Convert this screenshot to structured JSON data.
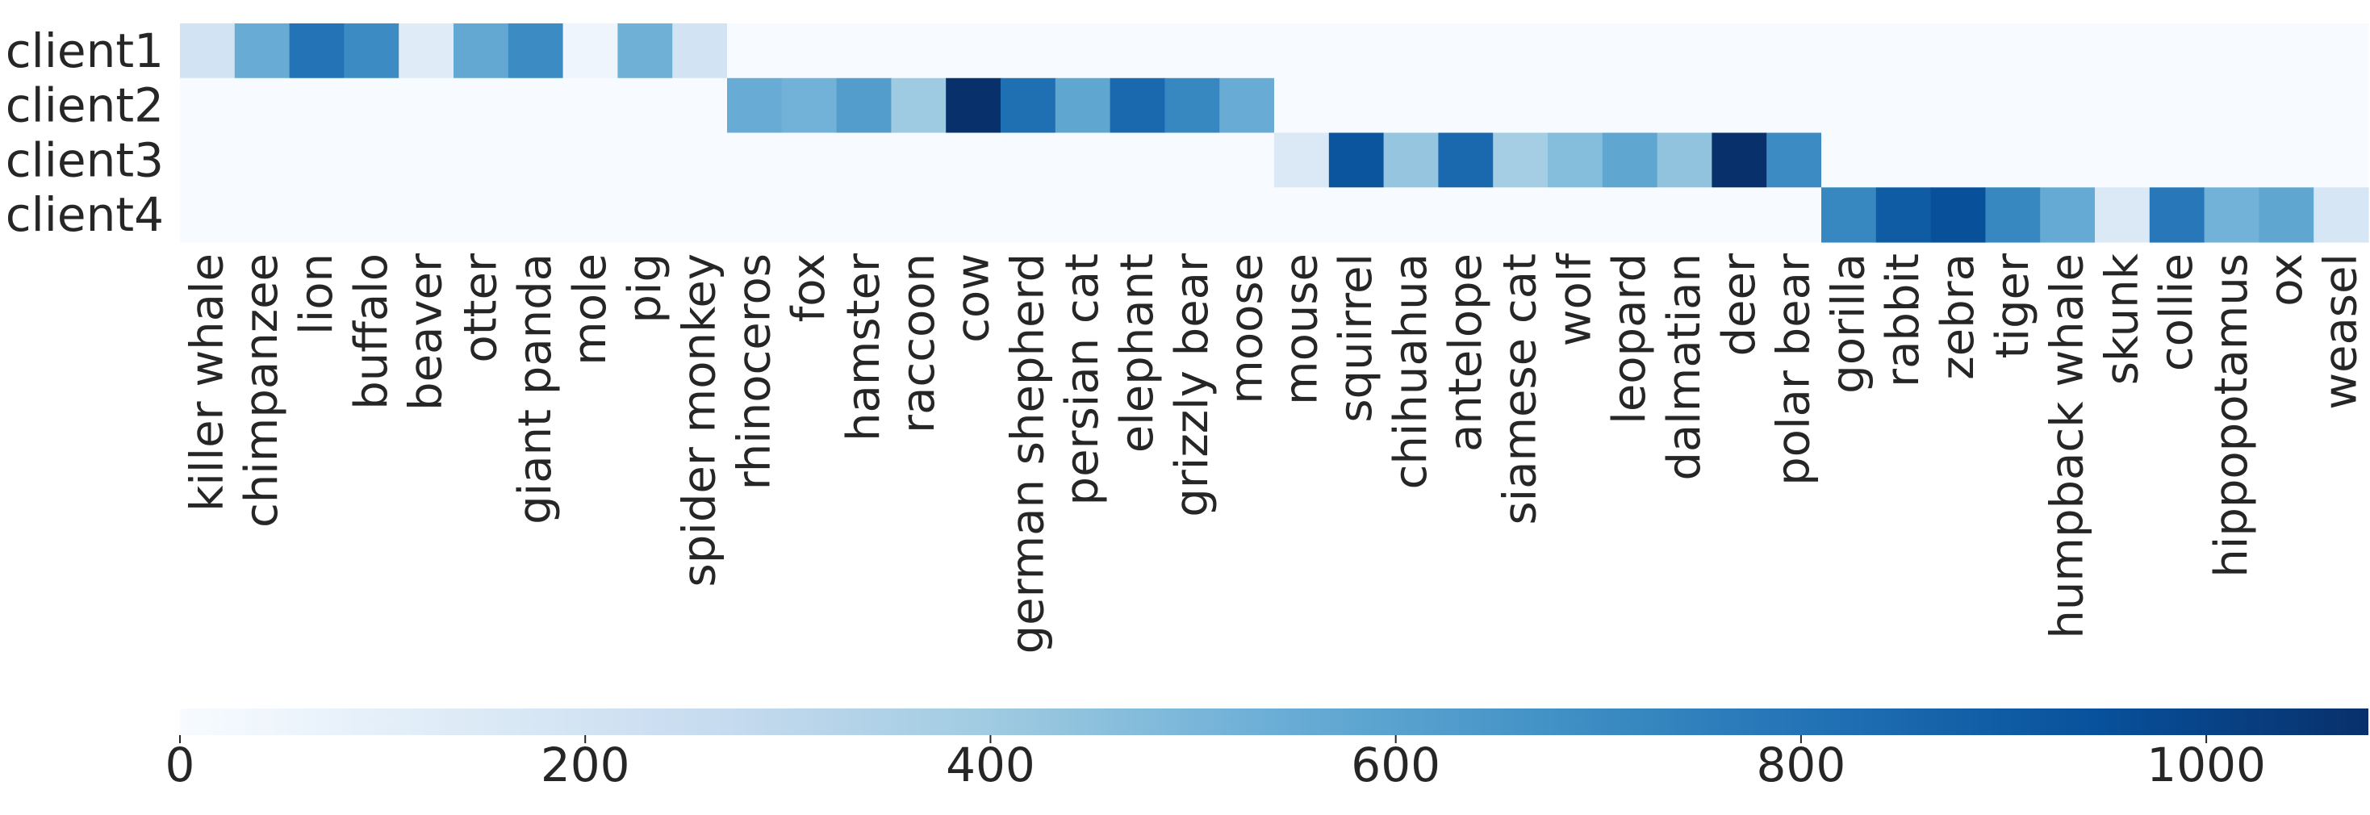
{
  "chart_data": {
    "type": "heatmap",
    "title": "",
    "xlabel": "",
    "ylabel": "",
    "rows": [
      "client1",
      "client2",
      "client3",
      "client4"
    ],
    "columns": [
      "killer whale",
      "chimpanzee",
      "lion",
      "buffalo",
      "beaver",
      "otter",
      "giant panda",
      "mole",
      "pig",
      "spider monkey",
      "rhinoceros",
      "fox",
      "hamster",
      "raccoon",
      "cow",
      "german shepherd",
      "persian cat",
      "elephant",
      "grizzly bear",
      "moose",
      "mouse",
      "squirrel",
      "chihuahua",
      "antelope",
      "siamese cat",
      "wolf",
      "leopard",
      "dalmatian",
      "deer",
      "polar bear",
      "gorilla",
      "rabbit",
      "zebra",
      "tiger",
      "humpback whale",
      "skunk",
      "collie",
      "hippopotamus",
      "ox",
      "weasel"
    ],
    "values": [
      [
        200,
        550,
        800,
        700,
        130,
        570,
        700,
        50,
        530,
        200,
        0,
        0,
        0,
        0,
        0,
        0,
        0,
        0,
        0,
        0,
        0,
        0,
        0,
        0,
        0,
        0,
        0,
        0,
        0,
        0,
        0,
        0,
        0,
        0,
        0,
        0,
        0,
        0,
        0,
        0
      ],
      [
        0,
        0,
        0,
        0,
        0,
        0,
        0,
        0,
        0,
        0,
        550,
        520,
        620,
        400,
        1080,
        820,
        580,
        850,
        720,
        550,
        0,
        0,
        0,
        0,
        0,
        0,
        0,
        0,
        0,
        0,
        0,
        0,
        0,
        0,
        0,
        0,
        0,
        0,
        0,
        0
      ],
      [
        0,
        0,
        0,
        0,
        0,
        0,
        0,
        0,
        0,
        0,
        0,
        0,
        0,
        0,
        0,
        0,
        0,
        0,
        0,
        0,
        150,
        930,
        430,
        850,
        380,
        470,
        580,
        440,
        1080,
        700,
        0,
        0,
        0,
        0,
        0,
        0,
        0,
        0,
        0,
        0
      ],
      [
        0,
        0,
        0,
        0,
        0,
        0,
        0,
        0,
        0,
        0,
        0,
        0,
        0,
        0,
        0,
        0,
        0,
        0,
        0,
        0,
        0,
        0,
        0,
        0,
        0,
        0,
        0,
        0,
        0,
        0,
        720,
        900,
        950,
        720,
        560,
        150,
        780,
        520,
        580,
        180
      ]
    ],
    "colorbar": {
      "min": 0,
      "max": 1080,
      "ticks": [
        0,
        200,
        400,
        600,
        800,
        1000
      ],
      "orientation": "horizontal",
      "placement": "bottom"
    },
    "colormap": [
      "#f7fbff",
      "#deebf7",
      "#c6dbef",
      "#9ecae1",
      "#6baed6",
      "#4292c6",
      "#2171b5",
      "#08519c",
      "#08306b"
    ],
    "grid": false
  }
}
